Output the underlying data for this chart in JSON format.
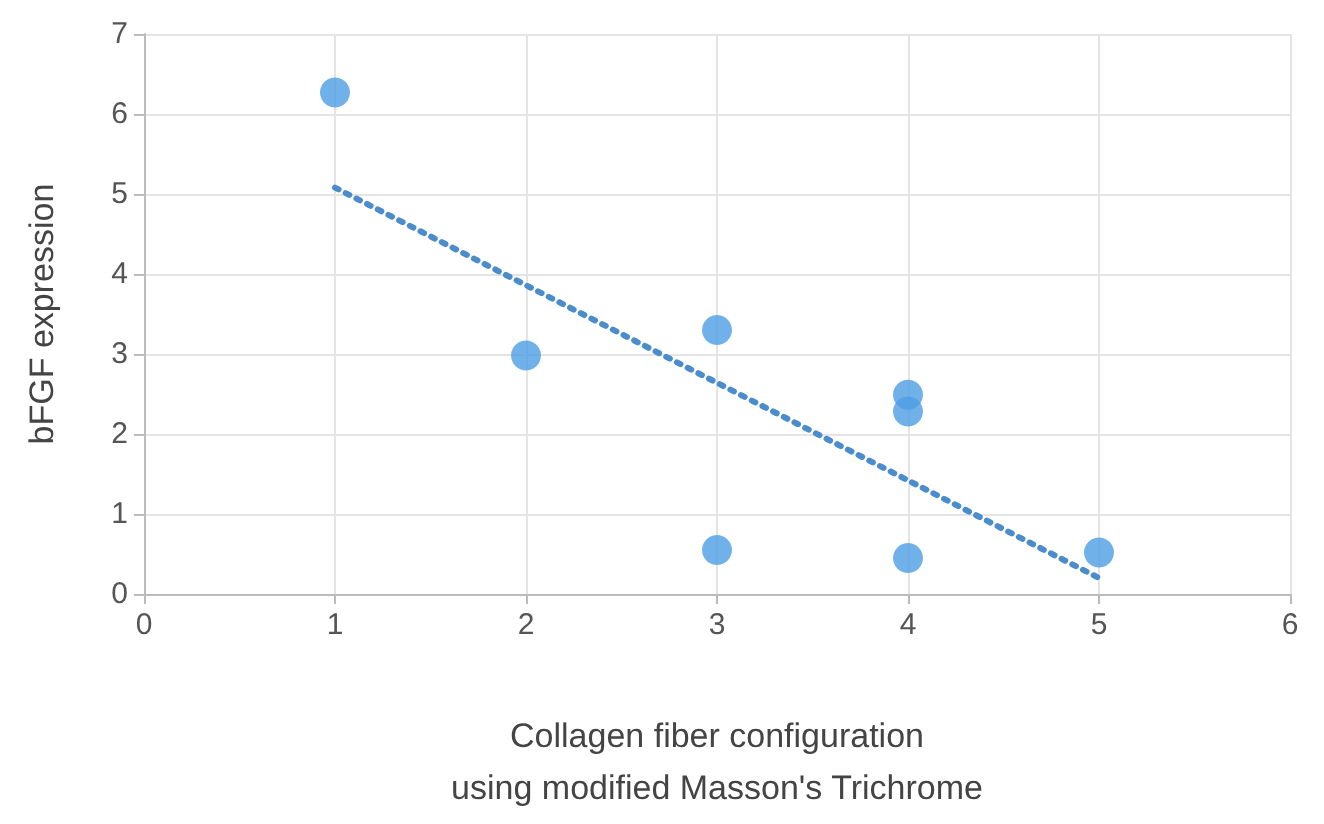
{
  "chart_data": {
    "type": "scatter",
    "xlabel": "Collagen fiber configuration\nusing modified Masson's Trichrome",
    "ylabel": "bFGF expression",
    "series": [
      {
        "color": "#4e9ee4",
        "x": [
          1,
          2,
          3,
          3,
          4,
          4,
          4,
          5
        ],
        "values": [
          6.27,
          2.98,
          3.3,
          0.55,
          2.49,
          2.28,
          0.45,
          0.52
        ],
        "marker": "circle"
      },
      {
        "type": "line",
        "color": "#4a8ccc",
        "x": [
          1,
          5
        ],
        "values": [
          5.08,
          0.2
        ],
        "line_style": "dotted",
        "marker": "none"
      }
    ],
    "xlim": [
      0,
      6
    ],
    "xticks": [
      0,
      1,
      2,
      3,
      4,
      5,
      6
    ],
    "ylim": [
      0,
      7
    ],
    "yticks": [
      0,
      1,
      2,
      3,
      4,
      5,
      6,
      7
    ],
    "grid": true
  }
}
